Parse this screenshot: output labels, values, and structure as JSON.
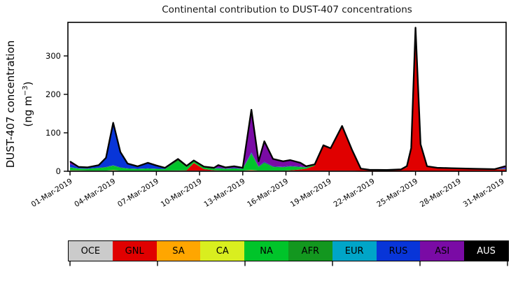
{
  "figure": {
    "title": "Continental contribution to DUST-407 concentrations",
    "ylabel_line1": "DUST-407 concentration",
    "ylabel_unit_prefix": "(ng m",
    "ylabel_unit_exp": "−3",
    "ylabel_unit_suffix": ")"
  },
  "chart_data": {
    "type": "area",
    "stacked": true,
    "title": "Continental contribution to DUST-407 concentrations",
    "xlabel": "",
    "ylabel": "DUST-407 concentration (ng m⁻³)",
    "x_unit": "days since 01-Mar-2019",
    "xlim_days": [
      -0.15,
      30.3
    ],
    "ylim": [
      0,
      386
    ],
    "grid": false,
    "total_outline_color": "#000000",
    "yticks": [
      0,
      100,
      200,
      300
    ],
    "xticks": {
      "positions_days": [
        0,
        3,
        6,
        9,
        12,
        15,
        18,
        21,
        24,
        27,
        30
      ],
      "labels": [
        "01-Mar-2019",
        "04-Mar-2019",
        "07-Mar-2019",
        "10-Mar-2019",
        "13-Mar-2019",
        "16-Mar-2019",
        "19-Mar-2019",
        "22-Mar-2019",
        "25-Mar-2019",
        "28-Mar-2019",
        "31-Mar-2019"
      ]
    },
    "x": [
      0,
      0.6,
      1.2,
      2,
      2.5,
      3,
      3.5,
      4,
      4.7,
      5.4,
      6,
      6.6,
      7.5,
      8.1,
      8.6,
      9.3,
      10,
      10.3,
      10.8,
      11.4,
      12,
      12.6,
      13.1,
      13.5,
      14.1,
      14.8,
      15.3,
      16,
      16.4,
      17,
      17.6,
      18.1,
      18.9,
      19.6,
      20.2,
      20.8,
      22,
      23,
      23.4,
      23.7,
      24,
      24.35,
      24.8,
      25.5,
      26.5,
      28,
      29.5,
      30.3
    ],
    "series": [
      {
        "name": "OCE",
        "color": "#cbcbcb",
        "values": [
          1.5,
          1.5,
          1.5,
          1.5,
          1.5,
          2,
          1.5,
          1.5,
          1.5,
          1.5,
          1.5,
          1.5,
          1.5,
          1.5,
          1.5,
          1.5,
          1.5,
          1.5,
          1.5,
          1.5,
          1.5,
          1.5,
          1.5,
          1.5,
          1.5,
          1.5,
          1.5,
          1.5,
          1.5,
          1.5,
          1.5,
          1.5,
          1.5,
          1.5,
          1,
          0.8,
          0.8,
          0.8,
          1,
          1,
          1.5,
          1,
          1,
          1,
          1,
          1,
          1,
          1
        ]
      },
      {
        "name": "GNL",
        "color": "#e00000",
        "values": [
          0.5,
          0.3,
          0.3,
          0.3,
          0,
          0.5,
          0,
          0,
          0,
          0,
          0,
          0.3,
          0.5,
          1,
          20,
          4,
          1,
          0.5,
          0,
          0,
          0,
          1,
          0,
          0,
          0,
          0,
          1,
          3,
          5,
          13,
          64,
          57,
          115,
          52.5,
          5.5,
          3,
          2.5,
          3.5,
          9,
          55,
          368,
          66,
          10.5,
          7,
          6.3,
          5,
          4,
          4
        ]
      },
      {
        "name": "SA",
        "color": "#ffa600",
        "values": [
          0.3,
          0.2,
          0,
          0,
          0,
          0.3,
          0,
          0,
          0,
          0,
          0,
          0,
          0,
          0,
          0.3,
          0,
          0,
          0,
          0,
          0,
          0,
          0.5,
          0,
          0,
          0,
          0,
          0,
          0,
          0,
          0,
          0,
          0,
          0,
          0,
          0,
          0,
          0,
          0,
          0,
          0,
          0,
          0,
          0,
          0,
          0,
          0,
          0,
          0
        ]
      },
      {
        "name": "CA",
        "color": "#d9ee1f",
        "values": [
          0.3,
          0.2,
          0,
          0,
          0,
          0.3,
          0,
          0,
          0,
          0,
          0,
          0,
          0,
          0,
          0,
          0,
          0,
          0,
          0,
          0,
          0,
          0.5,
          0,
          0,
          0,
          0,
          0,
          0,
          0,
          0,
          0,
          0,
          0,
          0,
          0,
          0,
          0,
          0,
          0,
          0,
          0,
          0,
          0,
          0,
          0,
          0,
          0,
          0
        ]
      },
      {
        "name": "NA",
        "color": "#00c42a",
        "values": [
          6,
          4,
          4,
          6,
          8,
          10,
          7,
          5,
          4,
          5,
          4,
          3.5,
          24,
          8,
          4.5,
          4,
          4,
          5,
          4,
          5,
          4,
          40,
          9,
          19,
          9,
          8,
          9,
          6,
          3,
          2,
          1.5,
          1,
          1,
          0.7,
          0.3,
          0,
          0,
          0.3,
          1,
          1.5,
          1.5,
          1.2,
          0.8,
          0.5,
          0.4,
          0.3,
          0.3,
          0.8
        ]
      },
      {
        "name": "AFR",
        "color": "#13971f",
        "values": [
          1.5,
          0.8,
          0.8,
          1.2,
          1.5,
          2,
          1.5,
          1,
          0.8,
          1,
          1,
          0.7,
          4,
          2,
          1,
          1,
          1,
          1,
          1,
          1,
          1,
          3,
          1.5,
          2.5,
          1.5,
          1.5,
          1.5,
          1,
          0.5,
          0.5,
          0,
          0,
          0,
          0,
          0,
          0,
          0,
          0,
          0,
          0,
          0,
          0,
          0,
          0,
          0,
          0,
          0,
          0.2
        ]
      },
      {
        "name": "EUR",
        "color": "#00a5c8",
        "values": [
          0.5,
          0.3,
          0,
          0,
          0,
          0.5,
          0,
          0,
          0,
          0,
          0,
          0,
          0,
          0,
          0,
          0,
          0,
          0,
          0,
          0,
          0,
          1,
          0,
          0,
          0,
          0,
          0,
          0,
          0,
          0,
          0,
          0,
          0,
          0,
          0,
          0,
          0,
          0,
          0.3,
          0.3,
          0.5,
          0.3,
          0,
          0,
          0,
          0,
          0,
          0.3
        ]
      },
      {
        "name": "RUS",
        "color": "#0835d8",
        "values": [
          8,
          3,
          3,
          6.5,
          23,
          109,
          39,
          12,
          6,
          14,
          8,
          2.5,
          1.5,
          1,
          0.5,
          1,
          1,
          1.5,
          1,
          1.5,
          1,
          2,
          1,
          1.5,
          1,
          1,
          1,
          1,
          0.5,
          0.5,
          0,
          0,
          0,
          0,
          0,
          0,
          0,
          0,
          1,
          1.5,
          1,
          1,
          0.4,
          0.3,
          0.3,
          0.2,
          0.2,
          2
        ]
      },
      {
        "name": "ASI",
        "color": "#7a0ba5",
        "values": [
          7,
          1,
          0.5,
          0.5,
          1,
          1.5,
          1,
          0.5,
          0.5,
          0.5,
          0.5,
          0.5,
          0.5,
          0.5,
          0.3,
          0.5,
          0.5,
          6.5,
          2.5,
          4,
          1.5,
          110.5,
          13,
          53.5,
          19,
          14,
          15,
          9.5,
          2.5,
          0.5,
          0.5,
          0.3,
          0.3,
          0,
          0,
          0,
          0,
          0.3,
          1,
          1,
          1,
          0.8,
          0.3,
          0.2,
          0,
          0,
          0,
          5
        ]
      },
      {
        "name": "AUS",
        "color": "#000000",
        "values": [
          0,
          0,
          0,
          0,
          0,
          0,
          0,
          0,
          0,
          0,
          0,
          0,
          0,
          0,
          0,
          0,
          0,
          0,
          0,
          0,
          0,
          0,
          0,
          0,
          0,
          0,
          0,
          0,
          0,
          0,
          0,
          0,
          0,
          0,
          0,
          0,
          0,
          0,
          0,
          0,
          0,
          0,
          0,
          0,
          0,
          0,
          0,
          0
        ]
      }
    ]
  },
  "legend": {
    "items": [
      {
        "label": "OCE",
        "color": "#cbcbcb",
        "text_color": "#000000"
      },
      {
        "label": "GNL",
        "color": "#e00000",
        "text_color": "#000000"
      },
      {
        "label": "SA",
        "color": "#ffa600",
        "text_color": "#000000"
      },
      {
        "label": "CA",
        "color": "#d9ee1f",
        "text_color": "#000000"
      },
      {
        "label": "NA",
        "color": "#00c42a",
        "text_color": "#000000"
      },
      {
        "label": "AFR",
        "color": "#13971f",
        "text_color": "#000000"
      },
      {
        "label": "EUR",
        "color": "#00a5c8",
        "text_color": "#000000"
      },
      {
        "label": "RUS",
        "color": "#0835d8",
        "text_color": "#000000"
      },
      {
        "label": "ASI",
        "color": "#7a0ba5",
        "text_color": "#000000"
      },
      {
        "label": "AUS",
        "color": "#000000",
        "text_color": "#ffffff"
      }
    ]
  }
}
